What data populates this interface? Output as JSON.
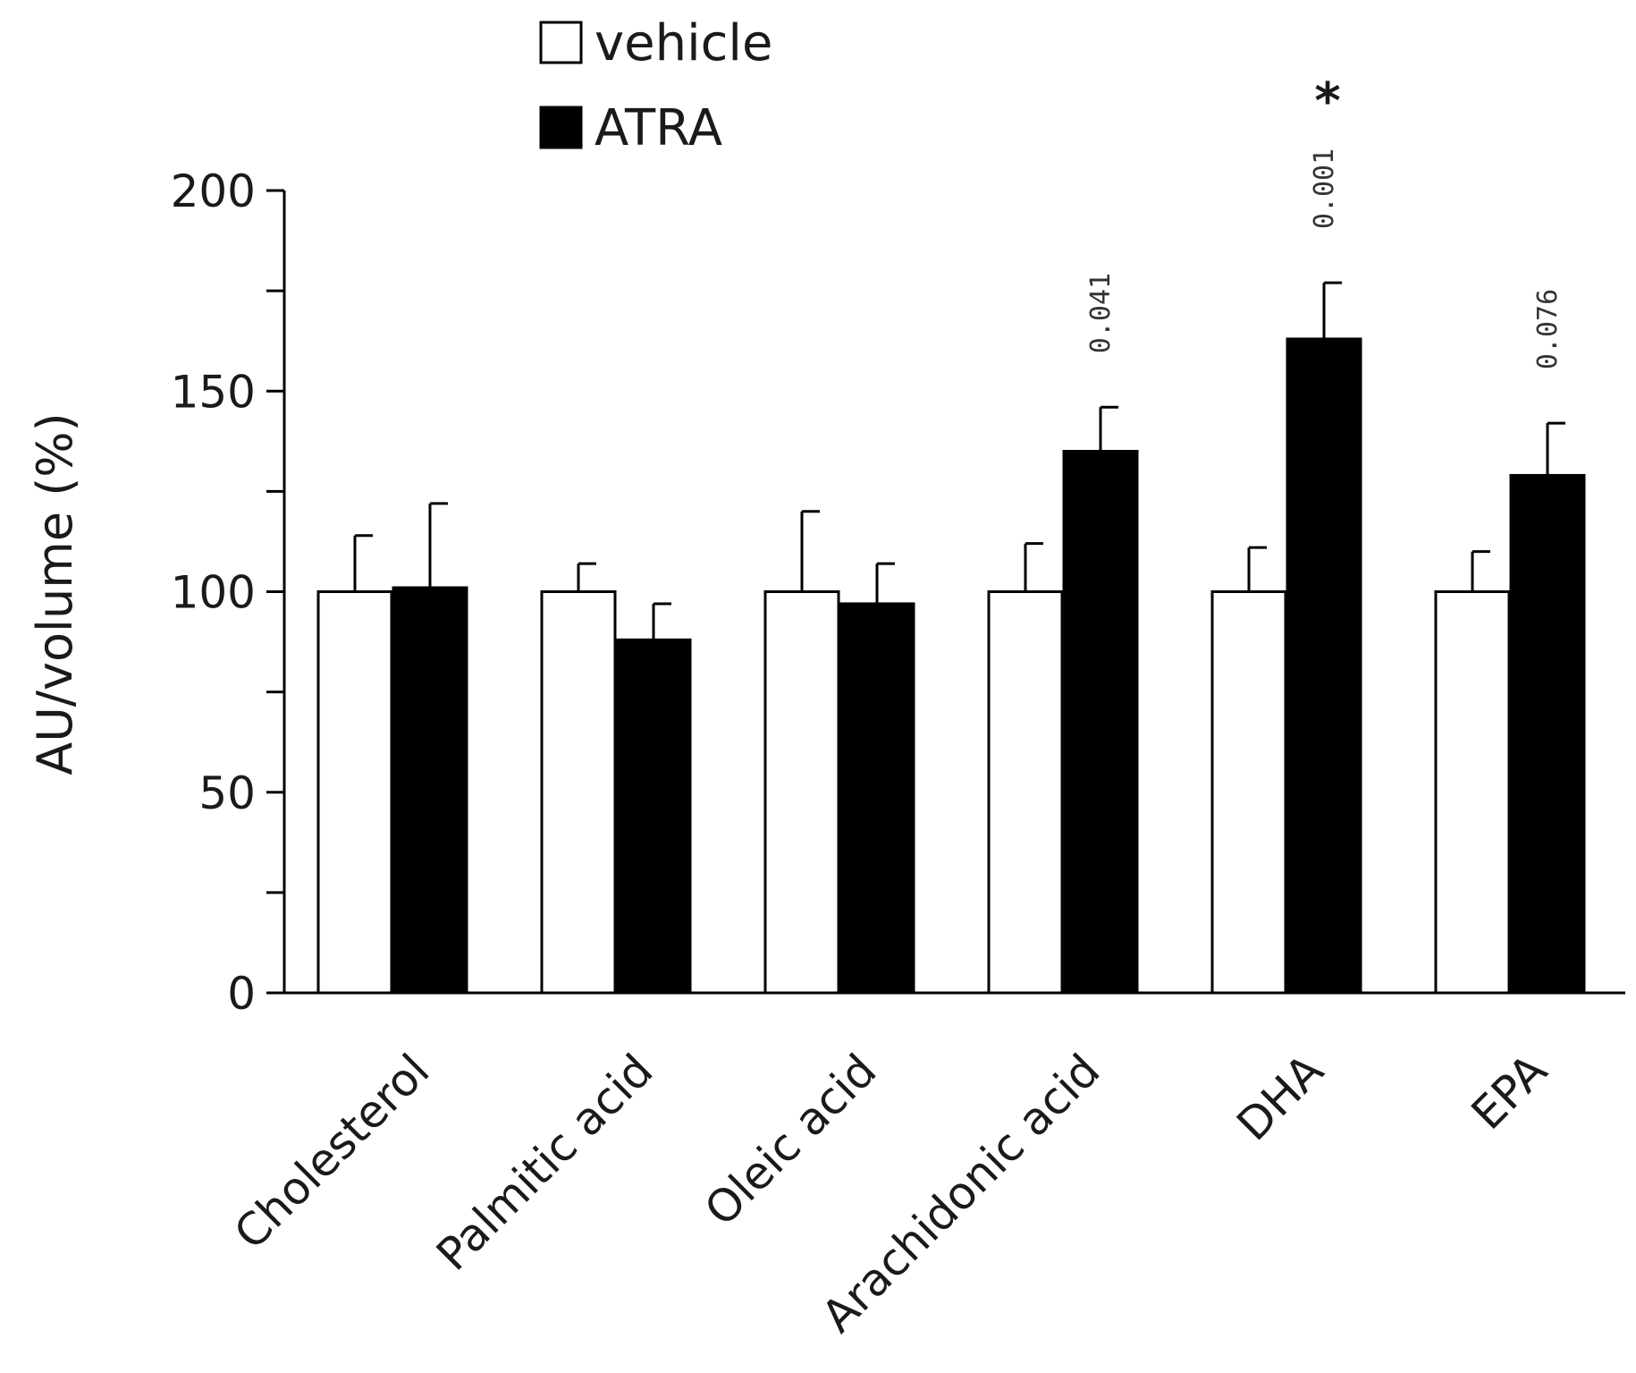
{
  "chart_data": {
    "type": "bar",
    "title": "",
    "xlabel": "",
    "ylabel": "AU/volume (%)",
    "ylim": [
      0,
      200
    ],
    "yticks": [
      0,
      50,
      100,
      150,
      200
    ],
    "minor_yticks": [
      25,
      75,
      125,
      175
    ],
    "categories": [
      "Cholesterol",
      "Palmitic acid",
      "Oleic acid",
      "Arachidonic acid",
      "DHA",
      "EPA"
    ],
    "series": [
      {
        "name": "vehicle",
        "color": "#ffffff",
        "values": [
          100,
          100,
          100,
          100,
          100,
          100
        ],
        "errors": [
          14,
          7,
          20,
          12,
          11,
          10
        ]
      },
      {
        "name": "ATRA",
        "color": "#000000",
        "values": [
          101,
          88,
          97,
          135,
          163,
          129
        ],
        "errors": [
          21,
          9,
          10,
          11,
          14,
          13
        ]
      }
    ],
    "annotations": [
      {
        "category": "Arachidonic acid",
        "text": "0.041"
      },
      {
        "category": "DHA",
        "text": "0.001",
        "marker": "*"
      },
      {
        "category": "EPA",
        "text": "0.076"
      }
    ],
    "legend_position": "top-left"
  }
}
